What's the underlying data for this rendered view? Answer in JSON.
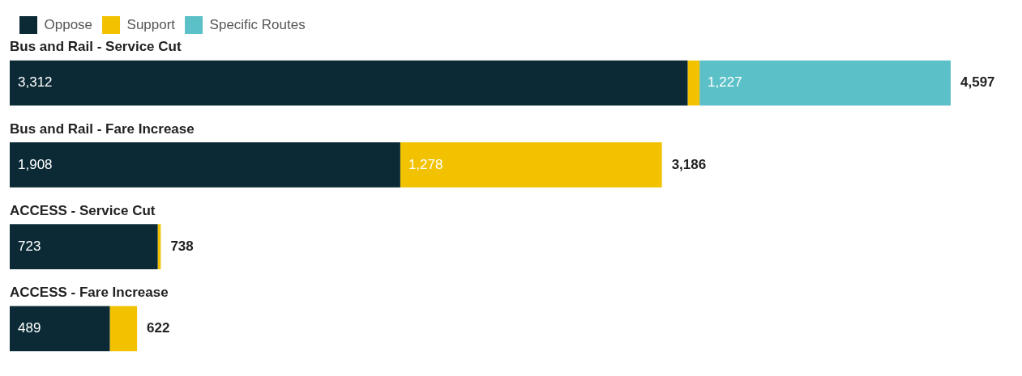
{
  "chart_data": {
    "type": "bar",
    "orientation": "horizontal",
    "stacked": true,
    "legend": "top left",
    "categories": [
      "Bus and Rail - Service Cut",
      "Bus and Rail - Fare Increase",
      "ACCESS - Service Cut",
      "ACCESS - Fare Increase"
    ],
    "series": [
      {
        "name": "Oppose",
        "color": "#0b2a35",
        "values": [
          3312,
          1908,
          723,
          489
        ],
        "value_labels": [
          "3,312",
          "1,908",
          "723",
          "489"
        ]
      },
      {
        "name": "Support",
        "color": "#f2c200",
        "values": [
          58,
          1278,
          15,
          133
        ],
        "value_labels": [
          null,
          "1,278",
          null,
          null
        ]
      },
      {
        "name": "Specific Routes",
        "color": "#5bc0c8",
        "values": [
          1227,
          null,
          null,
          null
        ],
        "value_labels": [
          "1,227",
          null,
          null,
          null
        ]
      }
    ],
    "totals": [
      "4,597",
      "3,186",
      "738",
      "622"
    ]
  }
}
